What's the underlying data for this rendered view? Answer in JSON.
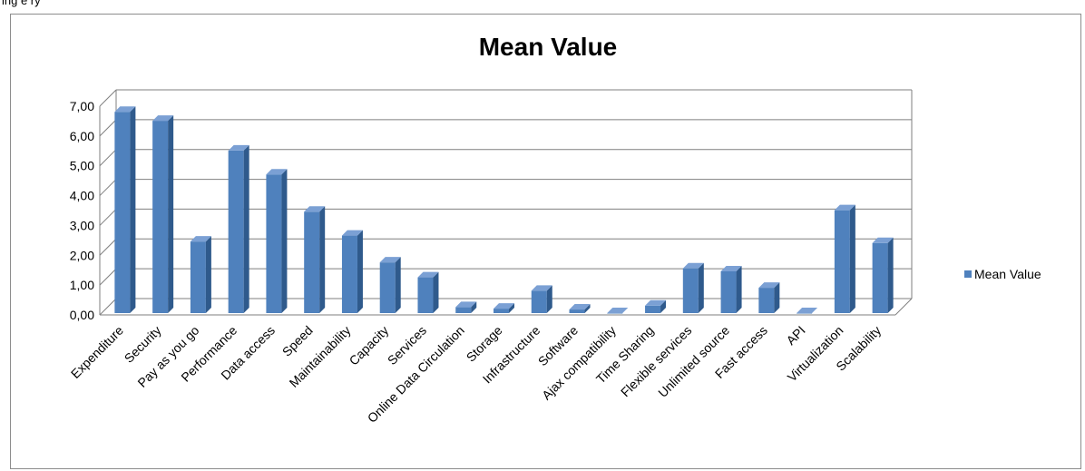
{
  "caption_fragment": "ing  e  ry",
  "chart_data": {
    "type": "bar",
    "style": "3d-column",
    "title": "Mean Value",
    "xlabel": "",
    "ylabel": "",
    "ylim": [
      0,
      7
    ],
    "yticks": [
      "0,00",
      "1,00",
      "2,00",
      "3,00",
      "4,00",
      "5,00",
      "6,00",
      "7,00"
    ],
    "grid": true,
    "legend": "right",
    "categories": [
      "Expenditure",
      "Security",
      "Pay as you go",
      "Performance",
      "Data access",
      "Speed",
      "Maintainability",
      "Capacity",
      "Services",
      "Online Data Circulation",
      "Storage",
      "Infrastructure",
      "Software",
      "Ajax compatibility",
      "Time Sharing",
      "Flexible services",
      "Unlimited source",
      "Fast access",
      "API",
      "Virtualization",
      "Scalability"
    ],
    "series": [
      {
        "name": "Mean Value",
        "color": "#4f81bd",
        "values": [
          6.75,
          6.45,
          2.4,
          5.45,
          4.65,
          3.4,
          2.6,
          1.7,
          1.2,
          0.2,
          0.15,
          0.75,
          0.12,
          0.0,
          0.25,
          1.5,
          1.4,
          0.85,
          0.0,
          3.45,
          2.35
        ]
      }
    ]
  }
}
